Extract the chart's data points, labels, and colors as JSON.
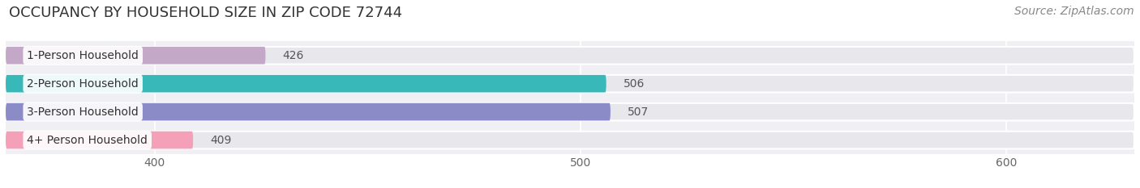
{
  "title": "OCCUPANCY BY HOUSEHOLD SIZE IN ZIP CODE 72744",
  "source": "Source: ZipAtlas.com",
  "categories": [
    "1-Person Household",
    "2-Person Household",
    "3-Person Household",
    "4+ Person Household"
  ],
  "values": [
    426,
    506,
    507,
    409
  ],
  "bar_colors": [
    "#c4a8c8",
    "#38b8b8",
    "#8b8bc8",
    "#f4a0b8"
  ],
  "bar_bg_color": "#e8e8ec",
  "xlim_left": 365,
  "xlim_right": 630,
  "xticks": [
    400,
    500,
    600
  ],
  "background_color": "#ffffff",
  "plot_bg_color": "#f0f0f4",
  "bar_height": 0.62,
  "bar_gap": 0.18,
  "title_fontsize": 13,
  "label_fontsize": 10,
  "tick_fontsize": 10,
  "source_fontsize": 10
}
